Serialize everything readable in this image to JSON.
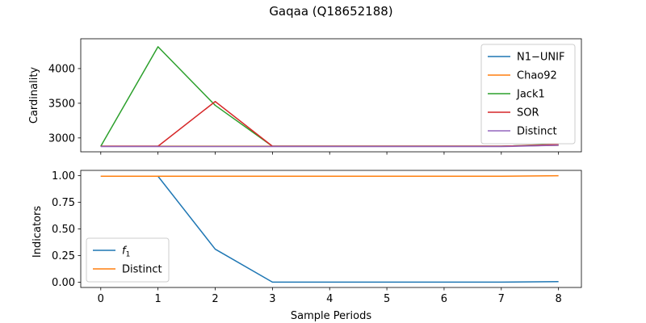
{
  "chart_data": [
    {
      "type": "line",
      "title": "Gaqaa (Q18652188)",
      "ylabel": "Cardinality",
      "xlabel": "",
      "x": [
        0,
        1,
        2,
        3,
        4,
        5,
        6,
        7,
        8
      ],
      "xlim": [
        -0.35,
        8.4
      ],
      "ylim": [
        2800,
        4430
      ],
      "yticks": [
        3000,
        3500,
        4000
      ],
      "xtick_labels_visible": false,
      "legend_position": "upper right",
      "series": [
        {
          "name": "N1−UNIF",
          "color": "#1f77b4",
          "values": [
            2880,
            2880,
            2880,
            2880,
            2880,
            2880,
            2880,
            2880,
            2895
          ]
        },
        {
          "name": "Chao92",
          "color": "#ff7f0e",
          "values": [
            2880,
            2880,
            2880,
            2880,
            2880,
            2880,
            2880,
            2880,
            2895
          ]
        },
        {
          "name": "Jack1",
          "color": "#2ca02c",
          "values": [
            2880,
            4315,
            3470,
            2880,
            2880,
            2880,
            2880,
            2880,
            2910
          ]
        },
        {
          "name": "SOR",
          "color": "#d62728",
          "values": [
            2880,
            2880,
            3525,
            2880,
            2880,
            2880,
            2880,
            2880,
            2905
          ]
        },
        {
          "name": "Distinct",
          "color": "#9467bd",
          "values": [
            2875,
            2875,
            2875,
            2875,
            2875,
            2875,
            2875,
            2875,
            2895
          ]
        }
      ]
    },
    {
      "type": "line",
      "title": "",
      "ylabel": "Indicators",
      "xlabel": "Sample Periods",
      "x": [
        0,
        1,
        2,
        3,
        4,
        5,
        6,
        7,
        8
      ],
      "xlim": [
        -0.35,
        8.4
      ],
      "ylim": [
        -0.05,
        1.05
      ],
      "yticks": [
        0.0,
        0.25,
        0.5,
        0.75,
        1.0
      ],
      "ytick_labels": [
        "0.00",
        "0.25",
        "0.50",
        "0.75",
        "1.00"
      ],
      "xticks": [
        0,
        1,
        2,
        3,
        4,
        5,
        6,
        7,
        8
      ],
      "xtick_labels": [
        "0",
        "1",
        "2",
        "3",
        "4",
        "5",
        "6",
        "7",
        "8"
      ],
      "legend_position": "lower left",
      "series": [
        {
          "name": "f1",
          "color": "#1f77b4",
          "values": [
            0.995,
            0.995,
            0.31,
            0.0,
            0.0,
            0.0,
            0.0,
            0.0,
            0.005
          ]
        },
        {
          "name": "Distinct",
          "color": "#ff7f0e",
          "values": [
            0.995,
            0.995,
            0.995,
            0.995,
            0.995,
            0.995,
            0.995,
            0.995,
            1.0
          ]
        }
      ]
    }
  ]
}
